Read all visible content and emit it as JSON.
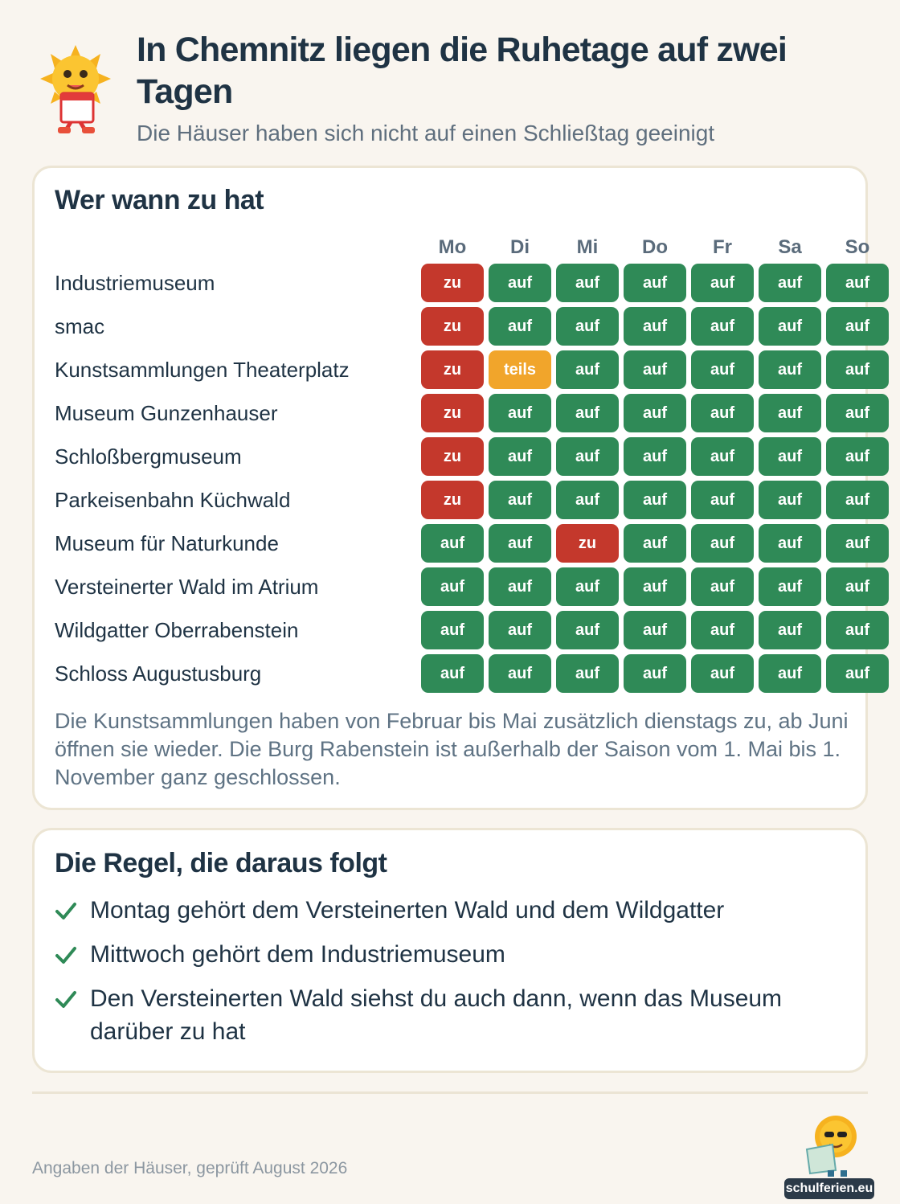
{
  "header": {
    "title": "In Chemnitz liegen die Ruhetage auf zwei Tagen",
    "subtitle": "Die Häuser haben sich nicht auf einen Schließtag geeinigt"
  },
  "schedule": {
    "heading": "Wer wann zu hat",
    "days": [
      "Mo",
      "Di",
      "Mi",
      "Do",
      "Fr",
      "Sa",
      "So"
    ],
    "cell_colors": {
      "zu": "#c4382c",
      "auf": "#2f8a57",
      "teils": "#f1a52b"
    },
    "rows": [
      {
        "label": "Industriemuseum",
        "cells": [
          "zu",
          "auf",
          "auf",
          "auf",
          "auf",
          "auf",
          "auf"
        ]
      },
      {
        "label": "smac",
        "cells": [
          "zu",
          "auf",
          "auf",
          "auf",
          "auf",
          "auf",
          "auf"
        ]
      },
      {
        "label": "Kunstsammlungen Theaterplatz",
        "cells": [
          "zu",
          "teils",
          "auf",
          "auf",
          "auf",
          "auf",
          "auf"
        ]
      },
      {
        "label": "Museum Gunzenhauser",
        "cells": [
          "zu",
          "auf",
          "auf",
          "auf",
          "auf",
          "auf",
          "auf"
        ]
      },
      {
        "label": "Schloßbergmuseum",
        "cells": [
          "zu",
          "auf",
          "auf",
          "auf",
          "auf",
          "auf",
          "auf"
        ]
      },
      {
        "label": "Parkeisenbahn Küchwald",
        "cells": [
          "zu",
          "auf",
          "auf",
          "auf",
          "auf",
          "auf",
          "auf"
        ]
      },
      {
        "label": "Museum für Naturkunde",
        "cells": [
          "auf",
          "auf",
          "zu",
          "auf",
          "auf",
          "auf",
          "auf"
        ]
      },
      {
        "label": "Versteinerter Wald im Atrium",
        "cells": [
          "auf",
          "auf",
          "auf",
          "auf",
          "auf",
          "auf",
          "auf"
        ]
      },
      {
        "label": "Wildgatter Oberrabenstein",
        "cells": [
          "auf",
          "auf",
          "auf",
          "auf",
          "auf",
          "auf",
          "auf"
        ]
      },
      {
        "label": "Schloss Augustusburg",
        "cells": [
          "auf",
          "auf",
          "auf",
          "auf",
          "auf",
          "auf",
          "auf"
        ]
      }
    ],
    "note": "Die Kunstsammlungen haben von Februar bis Mai zusätzlich dienstags zu, ab Juni öffnen sie wieder. Die Burg Rabenstein ist außerhalb der Saison vom 1. Mai bis 1. November ganz geschlossen."
  },
  "rules": {
    "heading": "Die Regel, die daraus folgt",
    "items": [
      "Montag gehört dem Versteinerten Wald und dem Wildgatter",
      "Mittwoch gehört dem Industriemuseum",
      "Den Versteinerten Wald siehst du auch dann, wenn das Museum darüber zu hat"
    ]
  },
  "footer": {
    "source": "Angaben der Häuser, geprüft August 2026",
    "brand": "schulferien.eu"
  }
}
